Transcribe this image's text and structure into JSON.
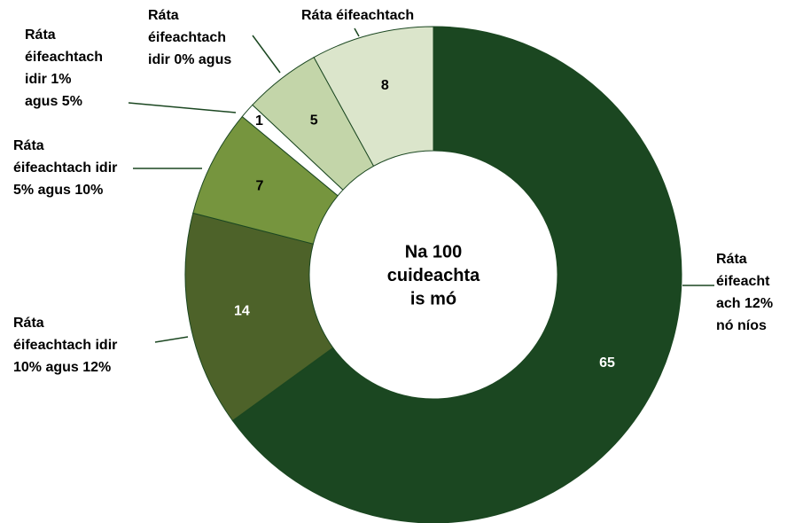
{
  "chart_data": {
    "type": "donut",
    "title": [
      "Na 100",
      "cuideachta",
      "is mó"
    ],
    "categories": [
      [
        "Ráta",
        "éifeacht",
        "ach 12%",
        "nó níos"
      ],
      [
        "Ráta",
        "éifeachtach idir",
        "10% agus 12%"
      ],
      [
        "Ráta",
        "éifeachtach idir",
        "5% agus 10%"
      ],
      [
        "Ráta",
        "éifeachtach",
        "idir 1%",
        "agus 5%"
      ],
      [
        "Ráta",
        "éifeachtach",
        "idir 0% agus"
      ],
      [
        "Ráta éifeachtach"
      ]
    ],
    "values": [
      65,
      14,
      7,
      1,
      5,
      8
    ],
    "colors": [
      "#1b4721",
      "#4d6229",
      "#76953e",
      "#ffffff",
      "#c3d5a9",
      "#dbe5cb"
    ],
    "value_label_colors": [
      "#ffffff",
      "#ffffff",
      "#000000",
      "#000000",
      "#000000",
      "#000000"
    ]
  }
}
